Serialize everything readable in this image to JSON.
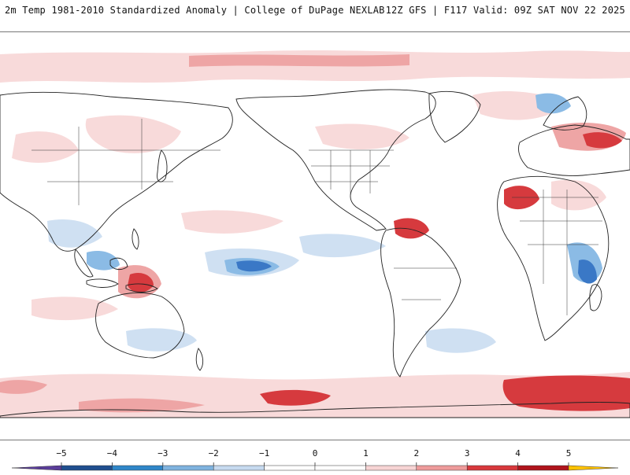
{
  "header": {
    "left_title": "2m Temp 1981-2010 Standardized Anomaly | College of DuPage NEXLAB",
    "right_title": "12Z GFS | F117 Valid: 09Z SAT NOV 22 2025"
  },
  "colorbar": {
    "ticks": [
      {
        "label": "−5",
        "value": -5
      },
      {
        "label": "−4",
        "value": -4
      },
      {
        "label": "−3",
        "value": -3
      },
      {
        "label": "−2",
        "value": -2
      },
      {
        "label": "−1",
        "value": -1
      },
      {
        "label": "0",
        "value": 0
      },
      {
        "label": "1",
        "value": 1
      },
      {
        "label": "2",
        "value": 2
      },
      {
        "label": "3",
        "value": 3
      },
      {
        "label": "4",
        "value": 4
      },
      {
        "label": "5",
        "value": 5
      }
    ],
    "colors": {
      "m5": "#5a3d9a",
      "m4": "#1f4f8f",
      "m3": "#2f86c8",
      "m2": "#7fb3df",
      "m1": "#c6daef",
      "zero": "#ffffff",
      "p1": "#f7d4d4",
      "p2": "#ee9b9b",
      "p3": "#d8383c",
      "p4": "#b0141c",
      "p5": "#ffc200"
    }
  },
  "map": {
    "colors": {
      "ocean": "#ffffff",
      "land_line": "#222222",
      "warm_light": "#f8dada",
      "warm_mid": "#eea5a5",
      "warm_strong": "#d63a3e",
      "cold_light": "#cfe0f2",
      "cold_mid": "#8bbbe5",
      "cold_strong": "#3a78c6"
    }
  }
}
